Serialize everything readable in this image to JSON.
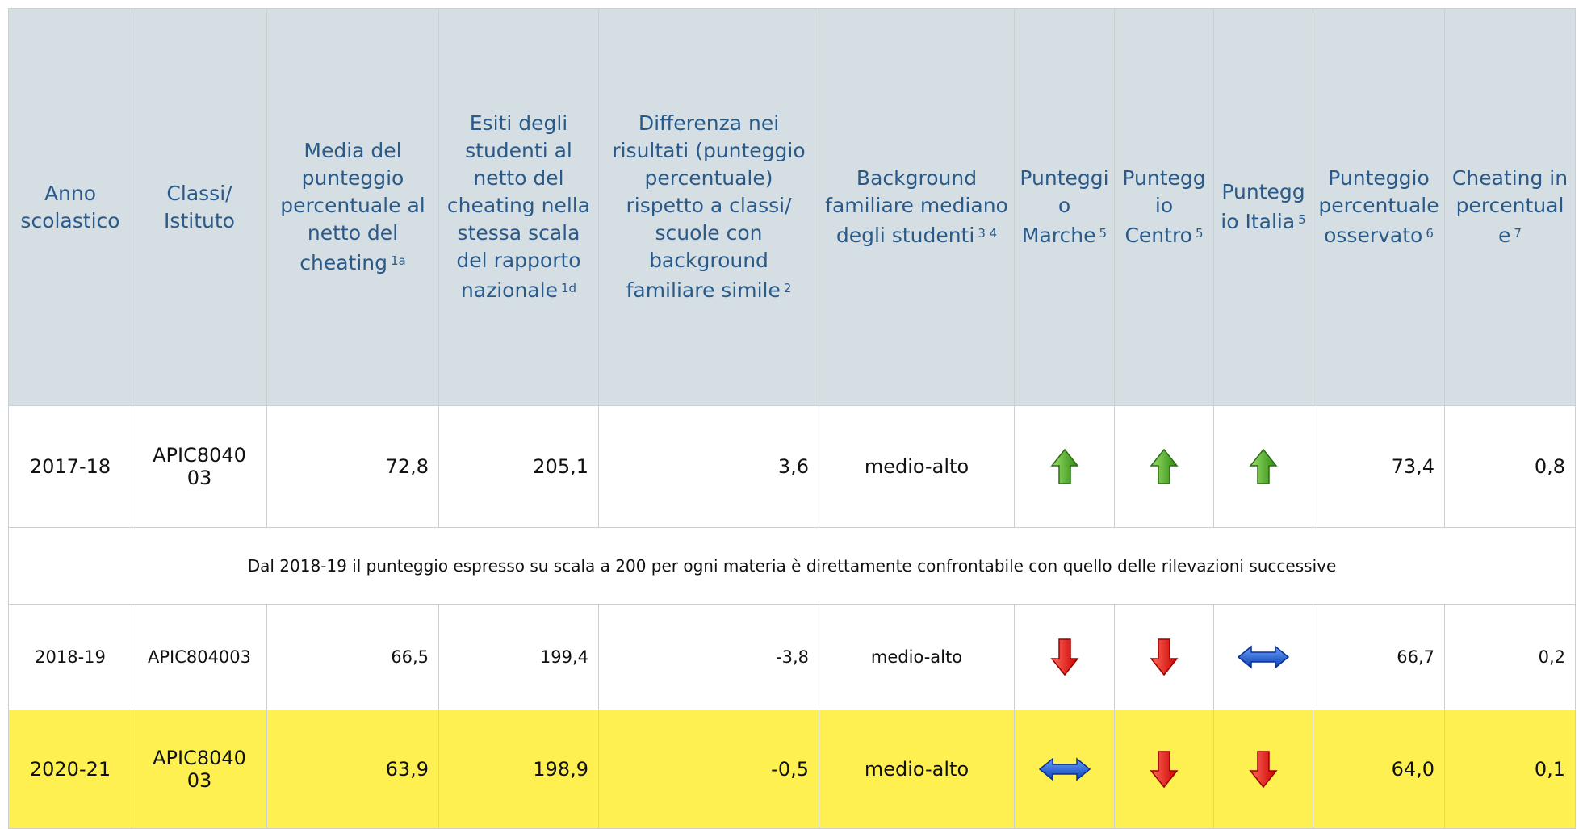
{
  "table": {
    "header": [
      {
        "text": "Anno scolastico"
      },
      {
        "text": "Classi/ Istituto"
      },
      {
        "text": "Media del punteggio percentuale al netto del cheating",
        "note": "1a"
      },
      {
        "text": "Esiti degli studenti al netto del cheating nella stessa scala del rapporto nazionale",
        "note": "1d"
      },
      {
        "text": "Differenza nei risultati (punteggio percentuale) rispetto a classi/ scuole con background familiare simile",
        "note": "2"
      },
      {
        "text": "Background familiare mediano degli studenti",
        "note": "3  4"
      },
      {
        "text": "Punteggio Marche",
        "note": "5"
      },
      {
        "text": "Punteggio Centro",
        "note": "5"
      },
      {
        "text": "Punteggio Italia",
        "note": "5"
      },
      {
        "text": "Punteggio percentuale osservato",
        "note": "6"
      },
      {
        "text": "Cheating in percentuale",
        "note": "7"
      }
    ],
    "rows": [
      {
        "year": "2017-18",
        "school": "APIC804003",
        "media": "72,8",
        "esiti": "205,1",
        "diff": "3,6",
        "background": "medio-alto",
        "osservato": "73,4",
        "cheating": "0,8"
      },
      {
        "year": "2018-19",
        "school": "APIC804003",
        "media": "66,5",
        "esiti": "199,4",
        "diff": "-3,8",
        "background": "medio-alto",
        "osservato": "66,7",
        "cheating": "0,2"
      },
      {
        "year": "2020-21",
        "school": "APIC804003",
        "media": "63,9",
        "esiti": "198,9",
        "diff": "-0,5",
        "background": "medio-alto",
        "osservato": "64,0",
        "cheating": "0,1"
      }
    ],
    "note": "Dal 2018-19 il punteggio espresso su scala a 200 per ogni materia è direttamente confrontabile con quello delle rilevazioni successive"
  }
}
